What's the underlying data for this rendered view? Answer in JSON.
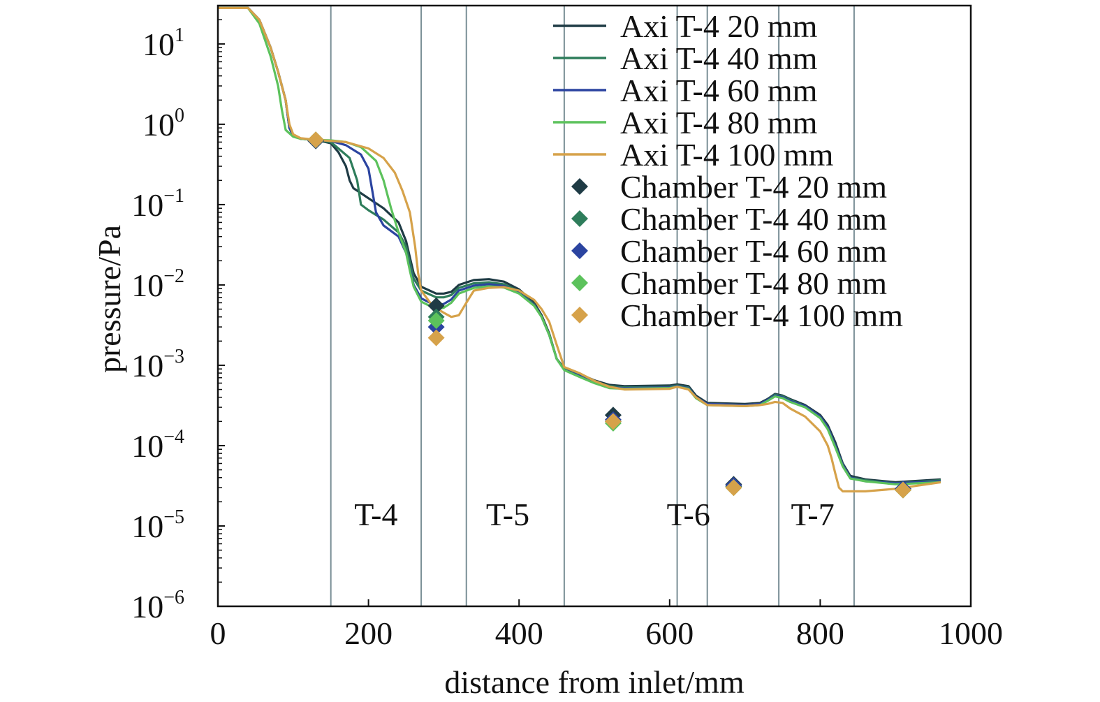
{
  "chart_data": {
    "type": "line",
    "title": "",
    "xlabel": "distance from inlet/mm",
    "ylabel": "pressure/Pa",
    "xlim": [
      0,
      1000
    ],
    "ylim": [
      1e-06,
      30
    ],
    "yscale": "log",
    "grid": false,
    "legend_position": "top-right",
    "x_ticks": [
      {
        "value": 0,
        "label": "0"
      },
      {
        "value": 200,
        "label": "200"
      },
      {
        "value": 400,
        "label": "400"
      },
      {
        "value": 600,
        "label": "600"
      },
      {
        "value": 800,
        "label": "800"
      },
      {
        "value": 1000,
        "label": "1000"
      }
    ],
    "y_ticks": [
      {
        "value": 10,
        "base": "10",
        "exp": "1"
      },
      {
        "value": 1,
        "base": "10",
        "exp": "0"
      },
      {
        "value": 0.1,
        "base": "10",
        "exp": "−1"
      },
      {
        "value": 0.01,
        "base": "10",
        "exp": "−2"
      },
      {
        "value": 0.001,
        "base": "10",
        "exp": "−3"
      },
      {
        "value": 0.0001,
        "base": "10",
        "exp": "−4"
      },
      {
        "value": 1e-05,
        "base": "10",
        "exp": "−5"
      },
      {
        "value": 1e-06,
        "base": "10",
        "exp": "−6"
      }
    ],
    "region_lines": [
      150,
      270,
      330,
      460,
      610,
      650,
      745,
      845
    ],
    "region_labels": [
      {
        "text": "T-4",
        "x": 210,
        "y": 1.4e-05
      },
      {
        "text": "T-5",
        "x": 385,
        "y": 1.4e-05
      },
      {
        "text": "T-6",
        "x": 625,
        "y": 1.4e-05
      },
      {
        "text": "T-7",
        "x": 790,
        "y": 1.4e-05
      }
    ],
    "series": [
      {
        "name": "Axi T-4 20 mm",
        "color": "#1f3b45",
        "x": [
          0,
          40,
          55,
          70,
          80,
          90,
          95,
          100,
          110,
          130,
          150,
          160,
          170,
          175,
          180,
          200,
          220,
          240,
          250,
          255,
          260,
          270,
          290,
          300,
          310,
          320,
          340,
          360,
          380,
          400,
          420,
          430,
          440,
          450,
          460,
          480,
          500,
          520,
          540,
          600,
          610,
          625,
          635,
          650,
          700,
          720,
          730,
          740,
          750,
          760,
          780,
          800,
          810,
          820,
          830,
          840,
          860,
          900,
          960
        ],
        "y": [
          28,
          28,
          20,
          9,
          4.5,
          2,
          0.9,
          0.72,
          0.66,
          0.64,
          0.58,
          0.45,
          0.3,
          0.2,
          0.16,
          0.12,
          0.09,
          0.06,
          0.035,
          0.022,
          0.014,
          0.0095,
          0.0078,
          0.0078,
          0.0082,
          0.01,
          0.0115,
          0.0118,
          0.011,
          0.0088,
          0.006,
          0.0042,
          0.0025,
          0.0012,
          0.00092,
          0.00078,
          0.00065,
          0.00057,
          0.00055,
          0.00056,
          0.00058,
          0.00055,
          0.00042,
          0.00034,
          0.00033,
          0.00034,
          0.00038,
          0.00044,
          0.00042,
          0.00038,
          0.00032,
          0.00024,
          0.00018,
          0.00011,
          6e-05,
          4.2e-05,
          3.8e-05,
          3.5e-05,
          3.8e-05
        ]
      },
      {
        "name": "Axi T-4 40 mm",
        "color": "#2e7d5b",
        "x": [
          0,
          40,
          55,
          70,
          80,
          90,
          95,
          100,
          110,
          130,
          150,
          160,
          175,
          185,
          190,
          200,
          220,
          240,
          250,
          255,
          260,
          270,
          290,
          300,
          310,
          320,
          340,
          360,
          380,
          400,
          420,
          430,
          440,
          450,
          460,
          480,
          500,
          520,
          540,
          600,
          610,
          625,
          635,
          650,
          700,
          720,
          730,
          740,
          750,
          760,
          780,
          800,
          810,
          820,
          830,
          840,
          860,
          900,
          960
        ],
        "y": [
          28,
          28,
          20,
          9,
          4.5,
          2,
          0.9,
          0.72,
          0.66,
          0.64,
          0.6,
          0.5,
          0.38,
          0.2,
          0.1,
          0.085,
          0.065,
          0.045,
          0.03,
          0.019,
          0.012,
          0.0085,
          0.007,
          0.007,
          0.0075,
          0.0092,
          0.0105,
          0.0108,
          0.0102,
          0.0083,
          0.0057,
          0.004,
          0.0024,
          0.0012,
          0.0009,
          0.00076,
          0.00063,
          0.00055,
          0.00053,
          0.00054,
          0.00056,
          0.00053,
          0.0004,
          0.00033,
          0.00032,
          0.00033,
          0.00037,
          0.00043,
          0.00041,
          0.00037,
          0.00031,
          0.00023,
          0.00017,
          0.0001,
          5.8e-05,
          4e-05,
          3.7e-05,
          3.4e-05,
          3.7e-05
        ]
      },
      {
        "name": "Axi T-4 60 mm",
        "color": "#2b44a0",
        "x": [
          0,
          40,
          55,
          70,
          80,
          90,
          95,
          100,
          110,
          130,
          150,
          170,
          190,
          200,
          205,
          210,
          220,
          240,
          250,
          255,
          260,
          270,
          290,
          300,
          310,
          320,
          340,
          360,
          380,
          400,
          420,
          430,
          440,
          450,
          460,
          480,
          500,
          520,
          540,
          600,
          610,
          625,
          635,
          650,
          700,
          720,
          730,
          740,
          750,
          760,
          780,
          800,
          810,
          820,
          830,
          840,
          860,
          900,
          960
        ],
        "y": [
          28,
          28,
          20,
          9,
          4.5,
          2,
          0.9,
          0.72,
          0.66,
          0.64,
          0.62,
          0.55,
          0.42,
          0.28,
          0.15,
          0.08,
          0.055,
          0.04,
          0.025,
          0.016,
          0.01,
          0.0068,
          0.0055,
          0.0058,
          0.0066,
          0.0085,
          0.0098,
          0.0102,
          0.0097,
          0.008,
          0.0056,
          0.004,
          0.0024,
          0.0012,
          0.00088,
          0.00074,
          0.00061,
          0.00053,
          0.00052,
          0.00053,
          0.00055,
          0.00052,
          0.0004,
          0.00033,
          0.00032,
          0.00033,
          0.00037,
          0.00042,
          0.0004,
          0.00036,
          0.00031,
          0.00023,
          0.00017,
          0.0001,
          5.7e-05,
          4e-05,
          3.6e-05,
          3.4e-05,
          3.6e-05
        ]
      },
      {
        "name": "Axi T-4 80 mm",
        "color": "#5cc25c",
        "x": [
          0,
          40,
          55,
          70,
          80,
          85,
          90,
          100,
          110,
          130,
          150,
          170,
          190,
          210,
          220,
          230,
          240,
          250,
          255,
          260,
          270,
          290,
          300,
          310,
          320,
          340,
          360,
          380,
          400,
          420,
          430,
          440,
          450,
          460,
          480,
          500,
          520,
          540,
          600,
          610,
          625,
          635,
          650,
          700,
          720,
          730,
          740,
          750,
          760,
          780,
          800,
          810,
          820,
          830,
          840,
          860,
          900,
          960
        ],
        "y": [
          28,
          28,
          18,
          7,
          3,
          1.5,
          0.85,
          0.7,
          0.66,
          0.64,
          0.63,
          0.6,
          0.52,
          0.35,
          0.2,
          0.09,
          0.045,
          0.025,
          0.015,
          0.0095,
          0.0062,
          0.005,
          0.0052,
          0.006,
          0.0078,
          0.0092,
          0.0096,
          0.0093,
          0.0078,
          0.0055,
          0.004,
          0.0024,
          0.0012,
          0.00087,
          0.00072,
          0.0006,
          0.00052,
          0.00051,
          0.00052,
          0.00054,
          0.00051,
          0.00039,
          0.00032,
          0.00031,
          0.00032,
          0.00036,
          0.00041,
          0.00039,
          0.00035,
          0.0003,
          0.00022,
          0.00016,
          9.5e-05,
          5.5e-05,
          3.9e-05,
          3.6e-05,
          3.3e-05,
          3.5e-05
        ]
      },
      {
        "name": "Axi T-4 100 mm",
        "color": "#d6a24a",
        "x": [
          0,
          40,
          55,
          70,
          80,
          90,
          95,
          100,
          110,
          130,
          150,
          170,
          200,
          220,
          235,
          245,
          255,
          262,
          266,
          270,
          285,
          300,
          310,
          320,
          330,
          340,
          360,
          380,
          400,
          420,
          430,
          440,
          450,
          460,
          480,
          500,
          520,
          540,
          600,
          610,
          625,
          635,
          650,
          700,
          720,
          730,
          740,
          750,
          760,
          780,
          800,
          810,
          815,
          820,
          825,
          830,
          860,
          900,
          960
        ],
        "y": [
          28,
          28,
          20,
          9,
          4.5,
          2,
          1,
          0.75,
          0.67,
          0.64,
          0.62,
          0.6,
          0.5,
          0.38,
          0.25,
          0.15,
          0.08,
          0.03,
          0.014,
          0.0085,
          0.0055,
          0.0045,
          0.004,
          0.0042,
          0.006,
          0.0085,
          0.0092,
          0.0094,
          0.0085,
          0.0065,
          0.005,
          0.0035,
          0.0018,
          0.00095,
          0.0008,
          0.00064,
          0.00054,
          0.0005,
          0.00051,
          0.00054,
          0.0005,
          0.0004,
          0.00032,
          0.00031,
          0.00032,
          0.00033,
          0.00035,
          0.00034,
          0.00029,
          0.00023,
          0.00015,
          0.0001,
          7e-05,
          4.5e-05,
          3e-05,
          2.7e-05,
          2.7e-05,
          2.9e-05,
          3.5e-05
        ]
      }
    ],
    "points": [
      {
        "name": "Chamber T-4 20 mm",
        "color": "#1f3b45",
        "x": [
          130,
          290,
          525,
          685,
          910
        ],
        "y": [
          0.62,
          0.0055,
          0.00024,
          3.3e-05,
          2.9e-05
        ]
      },
      {
        "name": "Chamber T-4 40 mm",
        "color": "#2e7d5b",
        "x": [
          130,
          290,
          525,
          685,
          910
        ],
        "y": [
          0.63,
          0.004,
          0.0002,
          3.1e-05,
          2.8e-05
        ]
      },
      {
        "name": "Chamber T-4 60 mm",
        "color": "#2b44a0",
        "x": [
          130,
          290,
          525,
          685,
          910
        ],
        "y": [
          0.63,
          0.003,
          0.00021,
          3.2e-05,
          2.9e-05
        ]
      },
      {
        "name": "Chamber T-4 80 mm",
        "color": "#5cc25c",
        "x": [
          130,
          290,
          525,
          685,
          910
        ],
        "y": [
          0.64,
          0.0036,
          0.00019,
          3e-05,
          2.8e-05
        ]
      },
      {
        "name": "Chamber T-4 100 mm",
        "color": "#d6a24a",
        "x": [
          130,
          290,
          525,
          685,
          910
        ],
        "y": [
          0.64,
          0.0022,
          0.0002,
          3e-05,
          2.8e-05
        ]
      }
    ]
  }
}
